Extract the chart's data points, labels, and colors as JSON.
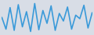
{
  "values": [
    2800,
    800,
    4500,
    600,
    5000,
    1200,
    3800,
    400,
    5200,
    700,
    4000,
    1800,
    4800,
    600,
    3500,
    2200,
    4600,
    800,
    3200,
    2600,
    4900,
    1000,
    3600
  ],
  "line_color": "#3a9ad9",
  "background_color": "#d8dde6",
  "linewidth": 1.2
}
